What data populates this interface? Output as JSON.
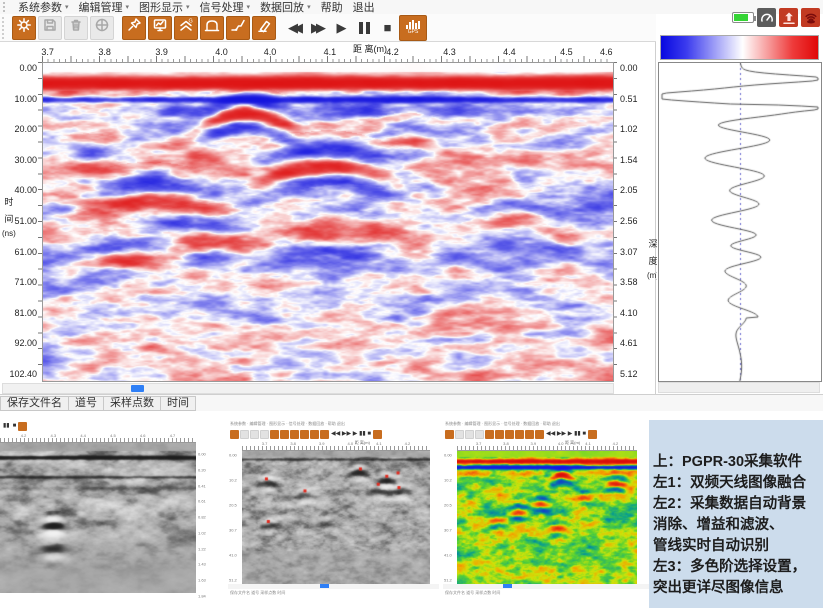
{
  "menu_bar": {
    "items": [
      {
        "label": "系统参数",
        "dropdown": true
      },
      {
        "label": "编辑管理",
        "dropdown": true
      },
      {
        "label": "图形显示",
        "dropdown": true
      },
      {
        "label": "信号处理",
        "dropdown": true
      },
      {
        "label": "数据回放",
        "dropdown": true
      },
      {
        "label": "帮助",
        "dropdown": false
      },
      {
        "label": "退出",
        "dropdown": false
      }
    ]
  },
  "toolbar": {
    "buttons": [
      {
        "name": "settings",
        "icon": "gear",
        "state": "active"
      },
      {
        "name": "save",
        "icon": "floppy",
        "state": "disabled"
      },
      {
        "name": "delete",
        "icon": "trash",
        "state": "disabled"
      },
      {
        "name": "window-layout",
        "icon": "circlegrid",
        "state": "disabled"
      },
      {
        "name": "marker-pin",
        "icon": "pin",
        "state": "active"
      },
      {
        "name": "display-mode",
        "icon": "monitor",
        "state": "active"
      },
      {
        "name": "gain",
        "icon": "gain",
        "state": "active"
      },
      {
        "name": "time-window",
        "icon": "arch",
        "state": "active"
      },
      {
        "name": "filter",
        "icon": "slope",
        "state": "active"
      },
      {
        "name": "background-removal",
        "icon": "eraser",
        "state": "active"
      }
    ],
    "playback": [
      {
        "name": "rewind",
        "glyph": "◀◀"
      },
      {
        "name": "fast-forward",
        "glyph": "▶▶"
      },
      {
        "name": "play",
        "glyph": "▶"
      },
      {
        "name": "pause",
        "glyph": "pause"
      },
      {
        "name": "stop",
        "glyph": "■"
      }
    ],
    "gps_label": "GPS"
  },
  "system_tray": {
    "icons": [
      {
        "name": "battery"
      },
      {
        "name": "speedometer"
      },
      {
        "name": "upload"
      },
      {
        "name": "radar-antenna"
      }
    ]
  },
  "main_plot": {
    "x_axis": {
      "title": "距 离(m)",
      "ticks": [
        {
          "label": "3.7",
          "pos": 1
        },
        {
          "label": "3.8",
          "pos": 11
        },
        {
          "label": "3.9",
          "pos": 21
        },
        {
          "label": "4.0",
          "pos": 31.5
        },
        {
          "label": "4.0",
          "pos": 40
        },
        {
          "label": "4.1",
          "pos": 50.5
        },
        {
          "label": "4.2",
          "pos": 61.5
        },
        {
          "label": "4.3",
          "pos": 71.5
        },
        {
          "label": "4.4",
          "pos": 82
        },
        {
          "label": "4.5",
          "pos": 92
        },
        {
          "label": "4.6",
          "pos": 99
        }
      ]
    },
    "y_axis_left": {
      "title_chars": [
        "时",
        "间",
        "(ns)"
      ],
      "ticks": [
        "0.00",
        "10.00",
        "20.00",
        "30.00",
        "40.00",
        "51.00",
        "61.00",
        "71.00",
        "81.00",
        "92.00",
        "102.40"
      ]
    },
    "y_axis_right": {
      "title_chars": [
        "深",
        "度",
        "(m)"
      ],
      "ticks": [
        "0.00",
        "0.51",
        "1.02",
        "1.54",
        "2.05",
        "2.56",
        "3.07",
        "3.58",
        "4.10",
        "4.61",
        "5.12"
      ]
    },
    "colormap": [
      "#0a0ae0",
      "#ffffff",
      "#e00a0a"
    ]
  },
  "status_bar": {
    "fields": [
      "保存文件名",
      "道号",
      "采样点数",
      "时间"
    ]
  },
  "thumbnails": {
    "mini_menu": "系统参数 · 编辑管理 · 图形显示 · 信号处理 · 数据回放 · 帮助 退出",
    "mini_status": "保存文件名  道号  采样点数  时间",
    "mini_axis_label": "距 离(m)",
    "items": [
      {
        "name": "dual-frequency-fusion",
        "palette": "grayscale",
        "x_ticks": [
          "4.2",
          "4.3",
          "4.4",
          "4.5",
          "4.6",
          "4.7"
        ],
        "right_ticks": [
          "0.00",
          "0.20",
          "0.41",
          "0.61",
          "0.82",
          "1.02",
          "1.22",
          "1.43",
          "1.63",
          "1.84"
        ]
      },
      {
        "name": "auto-background-gain-filter",
        "palette": "grayscale-marked",
        "x_ticks": [
          "3.7",
          "3.8",
          "3.9",
          "4.0",
          "4.1",
          "4.2"
        ],
        "left_ticks": [
          "0.00",
          "10.2",
          "20.5",
          "30.7",
          "41.0",
          "51.2"
        ]
      },
      {
        "name": "multi-color-palette",
        "palette": "rainbow",
        "x_ticks": [
          "3.7",
          "3.8",
          "3.9",
          "4.0",
          "4.1",
          "4.2"
        ],
        "left_ticks": [
          "0.00",
          "10.2",
          "20.5",
          "30.7",
          "41.0",
          "51.2"
        ]
      }
    ]
  },
  "caption": {
    "background": "#ccdcec",
    "lines": [
      "上：PGPR-30采集软件",
      "左1：双频天线图像融合",
      "左2：采集数据自动背景",
      "消除、增益和滤波、",
      "管线实时自动识别",
      "左3：多色阶选择设置，",
      "突出更详尽图像信息"
    ]
  }
}
